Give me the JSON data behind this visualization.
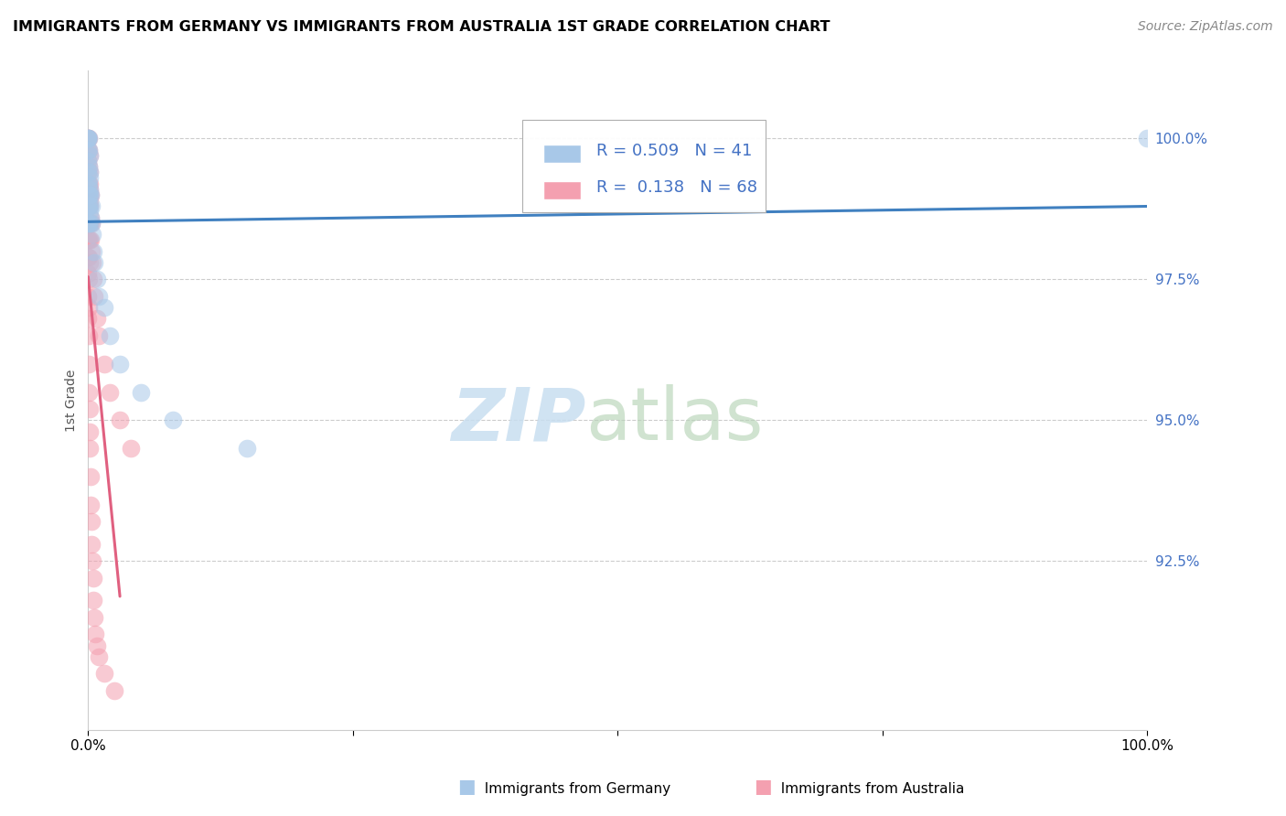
{
  "title": "IMMIGRANTS FROM GERMANY VS IMMIGRANTS FROM AUSTRALIA 1ST GRADE CORRELATION CHART",
  "source": "Source: ZipAtlas.com",
  "ylabel": "1st Grade",
  "r_germany": 0.509,
  "n_germany": 41,
  "r_australia": 0.138,
  "n_australia": 68,
  "color_germany": "#a8c8e8",
  "color_australia": "#f4a0b0",
  "ytick_labels": [
    "100.0%",
    "97.5%",
    "95.0%",
    "92.5%"
  ],
  "ytick_values": [
    100.0,
    97.5,
    95.0,
    92.5
  ],
  "xlim": [
    0.0,
    100.0
  ],
  "ylim": [
    89.5,
    101.2
  ],
  "germany_x": [
    0.0,
    0.0,
    0.0,
    0.0,
    0.0,
    0.0,
    0.0,
    0.0,
    0.0,
    0.0,
    0.05,
    0.05,
    0.05,
    0.05,
    0.05,
    0.05,
    0.05,
    0.1,
    0.1,
    0.1,
    0.1,
    0.1,
    0.15,
    0.15,
    0.15,
    0.2,
    0.2,
    0.3,
    0.35,
    0.4,
    0.5,
    0.6,
    0.8,
    1.0,
    1.5,
    2.0,
    3.0,
    5.0,
    8.0,
    15.0,
    100.0
  ],
  "germany_y": [
    100.0,
    100.0,
    100.0,
    99.8,
    99.6,
    99.4,
    99.2,
    99.0,
    98.8,
    98.5,
    100.0,
    99.8,
    99.5,
    99.2,
    99.0,
    98.8,
    98.5,
    99.7,
    99.4,
    99.1,
    98.8,
    98.5,
    99.3,
    99.0,
    98.7,
    99.0,
    98.6,
    98.8,
    98.5,
    98.3,
    98.0,
    97.8,
    97.5,
    97.2,
    97.0,
    96.5,
    96.0,
    95.5,
    95.0,
    94.5,
    100.0
  ],
  "australia_x": [
    0.0,
    0.0,
    0.0,
    0.0,
    0.0,
    0.0,
    0.0,
    0.0,
    0.0,
    0.0,
    0.0,
    0.0,
    0.05,
    0.05,
    0.05,
    0.05,
    0.05,
    0.05,
    0.05,
    0.05,
    0.05,
    0.05,
    0.1,
    0.1,
    0.1,
    0.1,
    0.1,
    0.1,
    0.1,
    0.15,
    0.15,
    0.15,
    0.2,
    0.2,
    0.2,
    0.3,
    0.3,
    0.4,
    0.5,
    0.6,
    0.8,
    1.0,
    1.5,
    2.0,
    3.0,
    4.0,
    0.0,
    0.0,
    0.05,
    0.05,
    0.08,
    0.08,
    0.1,
    0.12,
    0.15,
    0.2,
    0.25,
    0.3,
    0.35,
    0.4,
    0.45,
    0.5,
    0.6,
    0.7,
    0.8,
    1.0,
    1.5,
    2.5
  ],
  "australia_y": [
    100.0,
    100.0,
    99.8,
    99.6,
    99.4,
    99.2,
    99.0,
    98.8,
    98.5,
    98.2,
    97.9,
    97.6,
    100.0,
    99.8,
    99.5,
    99.2,
    99.0,
    98.8,
    98.5,
    98.2,
    97.9,
    97.5,
    99.7,
    99.4,
    99.1,
    98.8,
    98.5,
    98.2,
    97.8,
    99.2,
    98.9,
    98.5,
    99.0,
    98.6,
    98.2,
    98.5,
    98.0,
    97.8,
    97.5,
    97.2,
    96.8,
    96.5,
    96.0,
    95.5,
    95.0,
    94.5,
    97.2,
    96.8,
    97.0,
    96.5,
    96.0,
    95.5,
    95.2,
    94.8,
    94.5,
    94.0,
    93.5,
    93.2,
    92.8,
    92.5,
    92.2,
    91.8,
    91.5,
    91.2,
    91.0,
    90.8,
    90.5,
    90.2
  ]
}
